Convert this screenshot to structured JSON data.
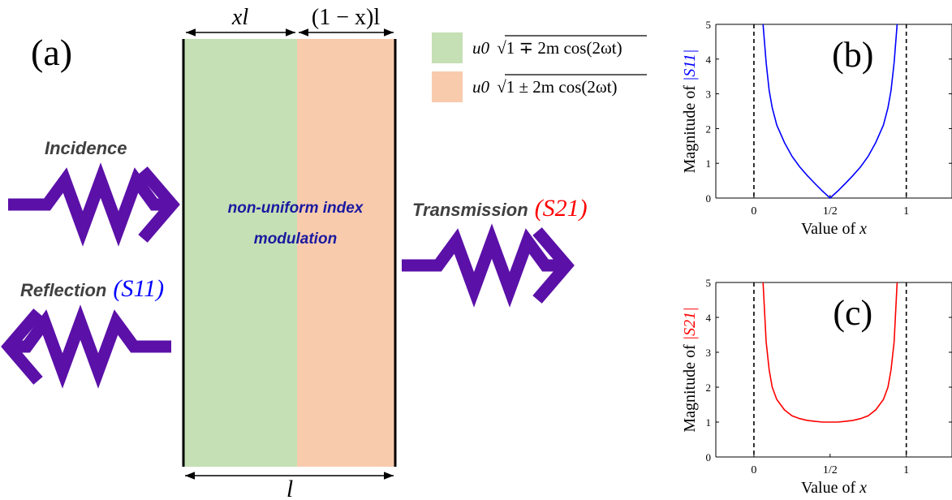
{
  "panel_a": {
    "label": "(a)",
    "xl_label": "xl",
    "one_minus_x_label": "(1 − x)l",
    "l_label": "l",
    "center_text_line1": "non-uniform index",
    "center_text_line2": "modulation",
    "incidence_label": "Incidence",
    "transmission_label": "Transmission",
    "transmission_param": "(S21)",
    "reflection_label": "Reflection",
    "reflection_param": "(S11)",
    "legend": [
      {
        "prefix": "u0",
        "expr": "1 ∓ 2m cos(2ωt)",
        "color": "#c5e0b4"
      },
      {
        "prefix": "u0",
        "expr": "1 ± 2m cos(2ωt)",
        "color": "#f8cbad"
      }
    ],
    "colors": {
      "green_region": "#c5e0b4",
      "orange_region": "#f8cbad",
      "arrow": "#5b10a8",
      "center_text": "#1a1aa0",
      "s11": "#0000ff",
      "s21": "#ff0000"
    }
  },
  "chart_data": [
    {
      "panel_label": "(b)",
      "type": "line",
      "xlabel": "Value of x",
      "ylabel": "Magnitude of |S11|",
      "ylabel_prefix": "Magnitude of ",
      "ylabel_sym": "|S11|",
      "xticks": [
        "0",
        "1/2",
        "1"
      ],
      "yticks": [
        "0",
        "1",
        "2",
        "3",
        "4",
        "5"
      ],
      "xlim": [
        -0.25,
        1.3
      ],
      "ylim": [
        0,
        5
      ],
      "vlines": [
        0,
        1
      ],
      "series": [
        {
          "color": "#0000ff",
          "x": [
            0.06,
            0.08,
            0.1,
            0.12,
            0.15,
            0.2,
            0.25,
            0.3,
            0.35,
            0.4,
            0.45,
            0.5,
            0.55,
            0.6,
            0.65,
            0.7,
            0.75,
            0.8,
            0.85,
            0.88,
            0.9,
            0.92,
            0.94
          ],
          "y": [
            5.0,
            3.9,
            3.1,
            2.6,
            2.1,
            1.6,
            1.2,
            0.9,
            0.65,
            0.42,
            0.2,
            0.0,
            0.2,
            0.42,
            0.65,
            0.9,
            1.2,
            1.6,
            2.1,
            2.6,
            3.1,
            3.9,
            5.0
          ]
        }
      ]
    },
    {
      "panel_label": "(c)",
      "type": "line",
      "xlabel": "Value of x",
      "ylabel": "Magnitude of |S21|",
      "ylabel_prefix": "Magnitude of ",
      "ylabel_sym": "|S21|",
      "xticks": [
        "0",
        "1/2",
        "1"
      ],
      "yticks": [
        "0",
        "1",
        "2",
        "3",
        "4",
        "5"
      ],
      "xlim": [
        -0.25,
        1.3
      ],
      "ylim": [
        0,
        5
      ],
      "vlines": [
        0,
        1
      ],
      "series": [
        {
          "color": "#ff0000",
          "x": [
            0.06,
            0.08,
            0.1,
            0.12,
            0.15,
            0.2,
            0.25,
            0.3,
            0.35,
            0.4,
            0.45,
            0.5,
            0.55,
            0.6,
            0.65,
            0.7,
            0.75,
            0.8,
            0.85,
            0.88,
            0.9,
            0.92,
            0.94
          ],
          "y": [
            5.0,
            3.3,
            2.5,
            2.0,
            1.65,
            1.35,
            1.18,
            1.1,
            1.05,
            1.02,
            1.0,
            1.0,
            1.0,
            1.02,
            1.05,
            1.1,
            1.18,
            1.35,
            1.65,
            2.0,
            2.5,
            3.3,
            5.0
          ]
        }
      ]
    }
  ]
}
